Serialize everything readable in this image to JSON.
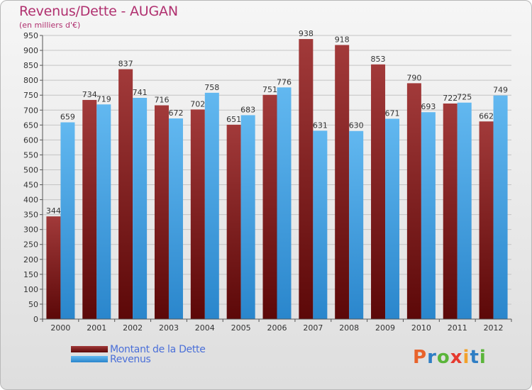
{
  "title": "Revenus/Dette - AUGAN",
  "subtitle": "(en milliers d'€)",
  "logo": {
    "text": "Proxiti",
    "letters": [
      "P",
      "r",
      "o",
      "x",
      "i",
      "t",
      "i"
    ],
    "colors": [
      "#e8632b",
      "#2f7ec4",
      "#5ab53a",
      "#e63a2f",
      "#f2a12a",
      "#2f7ec4",
      "#5ab53a"
    ]
  },
  "colors": {
    "dette_top": "#a23a3a",
    "dette_bottom": "#5c0808",
    "revenus_top": "#62b8f0",
    "revenus_bottom": "#2a86cc",
    "grid": "#c4c4c4"
  },
  "chart_data": {
    "type": "bar",
    "title": "Revenus/Dette - AUGAN",
    "subtitle": "(en milliers d'€)",
    "xlabel": "",
    "ylabel": "",
    "ylim": [
      0,
      950
    ],
    "yticks": [
      0,
      50,
      100,
      150,
      200,
      250,
      300,
      350,
      400,
      450,
      500,
      550,
      600,
      650,
      700,
      750,
      800,
      850,
      900,
      950
    ],
    "grid": true,
    "legend_position": "bottom-left",
    "categories": [
      "2000",
      "2001",
      "2002",
      "2003",
      "2004",
      "2005",
      "2006",
      "2007",
      "2008",
      "2009",
      "2010",
      "2011",
      "2012"
    ],
    "series": [
      {
        "name": "Montant de la Dette",
        "values": [
          344,
          734,
          837,
          716,
          702,
          651,
          751,
          938,
          918,
          853,
          790,
          722,
          662
        ]
      },
      {
        "name": "Revenus",
        "values": [
          659,
          719,
          741,
          672,
          758,
          683,
          776,
          631,
          630,
          671,
          693,
          725,
          749
        ]
      }
    ]
  }
}
